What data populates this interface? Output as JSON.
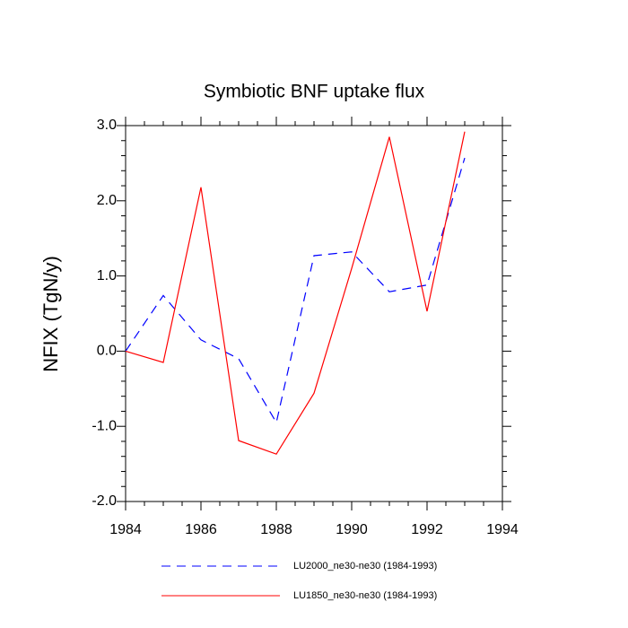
{
  "chart_data": {
    "type": "line",
    "title": "Symbiotic BNF uptake flux",
    "y_label": "NFIX  (TgN/y)",
    "x": [
      1984,
      1985,
      1986,
      1987,
      1988,
      1989,
      1990,
      1991,
      1992,
      1993
    ],
    "series": [
      {
        "name": "LU2000_ne30-ne30 (1984-1993)",
        "color": "#0000ff",
        "dash": true,
        "values": [
          0.0,
          0.74,
          0.15,
          -0.1,
          -0.95,
          1.27,
          1.32,
          0.79,
          0.88,
          2.57
        ]
      },
      {
        "name": "LU1850_ne30-ne30 (1984-1993)",
        "color": "#ff0000",
        "dash": false,
        "values": [
          0.0,
          -0.15,
          2.18,
          -1.19,
          -1.37,
          -0.56,
          1.1,
          2.85,
          0.53,
          2.92
        ]
      }
    ],
    "xlim": [
      1984,
      1994
    ],
    "xticks": [
      1984,
      1986,
      1988,
      1990,
      1992,
      1994
    ],
    "ylim": [
      -2,
      3
    ],
    "yticks": [
      {
        "value": -2,
        "label": "-2.0"
      },
      {
        "value": -1,
        "label": "-1.0"
      },
      {
        "value": 0,
        "label": "0.0"
      },
      {
        "value": 1,
        "label": "1.0"
      },
      {
        "value": 2,
        "label": "2.0"
      },
      {
        "value": 3,
        "label": "3.0"
      }
    ],
    "legend": "bottom",
    "grid": false
  }
}
